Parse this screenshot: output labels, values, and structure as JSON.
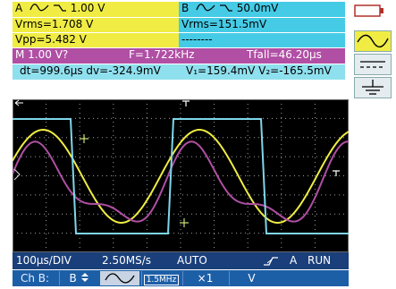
{
  "channelA": {
    "label": "A",
    "sens": "1.00 V",
    "vrms": "Vrms=1.708 V",
    "vpp": "Vpp=5.482 V"
  },
  "channelB": {
    "label": "B",
    "sens": "50.0mV",
    "vrms": "Vrms=151.5mV",
    "vpp": "--------"
  },
  "math": {
    "label": "M 1.00 V?",
    "freq": "F=1.722kHz",
    "tfall": "Tfall=46.20µs"
  },
  "cursors": {
    "dt_dv": "dt=999.6µs dv=-324.9mV",
    "va_vb": "V₁=159.4mV V₂=-165.5mV"
  },
  "status": {
    "timebase": "100µs/DIV",
    "samplerate": "2.50MS/s",
    "mode": "AUTO",
    "trigger_channel": "A",
    "run_state": "RUN"
  },
  "menu": {
    "channel": "Ch B:",
    "b_label": "B",
    "bw_limit": "1.5MHz",
    "multiplier": "×1",
    "unit": "V"
  },
  "colors": {
    "trace_yellow": "#f0ec44",
    "trace_cyan": "#7fd6ea",
    "trace_magenta": "#b04fa4",
    "scope_bg": "#000000",
    "grid": "#9aa0a6"
  },
  "icons": [
    "battery-icon",
    "sine-coupling-icon",
    "dc-coupling-icon",
    "ground-coupling-icon",
    "trigger-edge-icon",
    "updown-arrow-icon",
    "ac-coupling-icon"
  ]
}
